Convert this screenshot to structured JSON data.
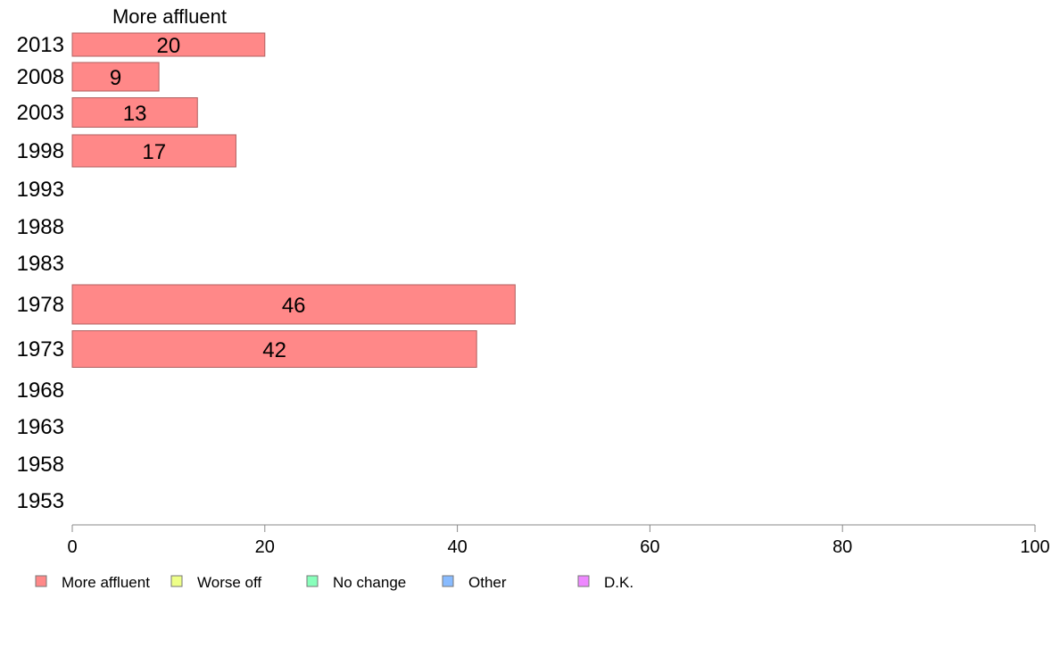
{
  "chart_data": {
    "type": "bar",
    "orientation": "horizontal",
    "title": "More affluent",
    "categories": [
      "2013",
      "2008",
      "2003",
      "1998",
      "1993",
      "1988",
      "1983",
      "1978",
      "1973",
      "1968",
      "1963",
      "1958",
      "1953"
    ],
    "series": [
      {
        "name": "More affluent",
        "color": "#ff8888",
        "values": [
          20,
          9,
          13,
          17,
          null,
          null,
          null,
          46,
          42,
          null,
          null,
          null,
          null
        ]
      },
      {
        "name": "Worse off",
        "color": "#eeff88",
        "values": [
          null,
          null,
          null,
          null,
          null,
          null,
          null,
          null,
          null,
          null,
          null,
          null,
          null
        ]
      },
      {
        "name": "No change",
        "color": "#88ffbb",
        "values": [
          null,
          null,
          null,
          null,
          null,
          null,
          null,
          null,
          null,
          null,
          null,
          null,
          null
        ]
      },
      {
        "name": "Other",
        "color": "#88bbff",
        "values": [
          null,
          null,
          null,
          null,
          null,
          null,
          null,
          null,
          null,
          null,
          null,
          null,
          null
        ]
      },
      {
        "name": "D.K.",
        "color": "#ee88ff",
        "values": [
          null,
          null,
          null,
          null,
          null,
          null,
          null,
          null,
          null,
          null,
          null,
          null,
          null
        ]
      }
    ],
    "xlim": [
      0,
      100
    ],
    "xticks": [
      "0",
      "20",
      "40",
      "60",
      "80",
      "100"
    ],
    "legend_position": "bottom",
    "grid": false
  }
}
